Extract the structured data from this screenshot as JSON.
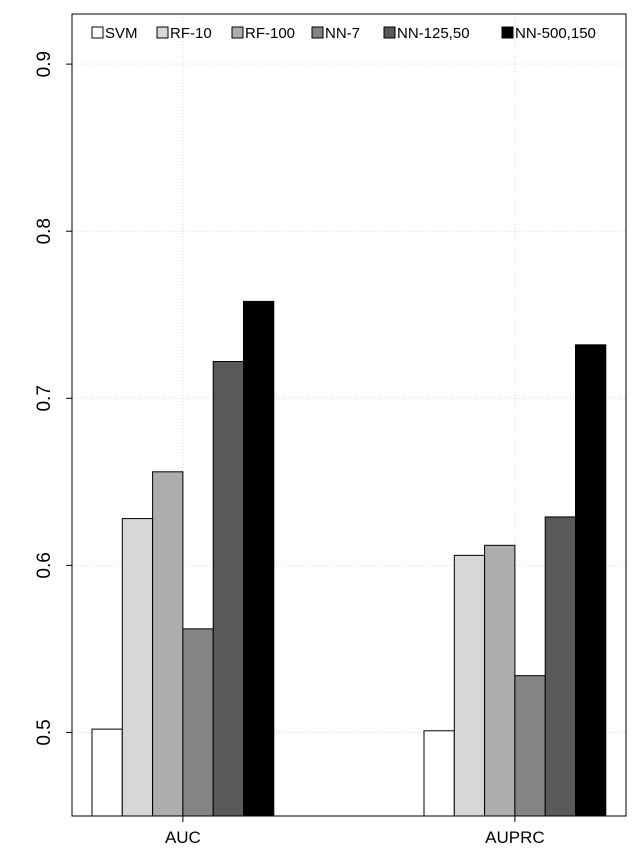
{
  "chart_data": {
    "type": "bar",
    "categories": [
      "AUC",
      "AUPRC"
    ],
    "series": [
      {
        "name": "SVM",
        "values": [
          0.502,
          0.501
        ],
        "color": "#ffffff"
      },
      {
        "name": "RF-10",
        "values": [
          0.628,
          0.606
        ],
        "color": "#d7d7d7"
      },
      {
        "name": "RF-100",
        "values": [
          0.656,
          0.612
        ],
        "color": "#adadad"
      },
      {
        "name": "NN-7",
        "values": [
          0.562,
          0.534
        ],
        "color": "#848484"
      },
      {
        "name": "NN-125,50",
        "values": [
          0.722,
          0.629
        ],
        "color": "#595959"
      },
      {
        "name": "NN-500,150",
        "values": [
          0.758,
          0.732
        ],
        "color": "#000000"
      }
    ],
    "yticks": [
      "0.5",
      "0.6",
      "0.7",
      "0.8",
      "0.9"
    ],
    "ylim": [
      0.45,
      0.93
    ],
    "grid": true,
    "legend_position": "top"
  }
}
